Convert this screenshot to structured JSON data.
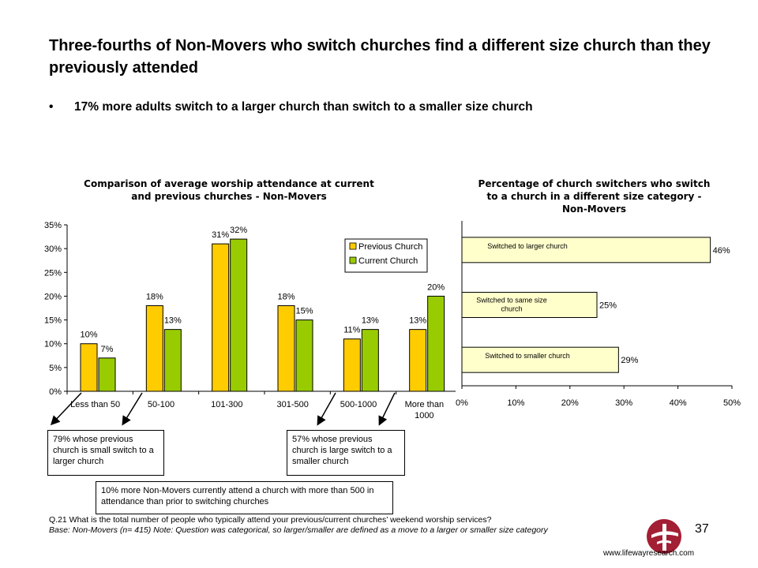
{
  "slide": {
    "title": "Three-fourths of Non-Movers who switch churches find a different size church than they previously attended",
    "bullet": "17% more adults switch to a larger church than switch to a smaller size church",
    "page_number": "37",
    "website": "www.lifewayresearch.com"
  },
  "callouts": {
    "small_to_larger": "79% whose previous church is small switch to a larger church",
    "large_to_smaller": "57% whose previous church is large switch to a smaller church",
    "over_500": "10% more Non-Movers currently attend a church with more than 500 in attendance than prior to switching churches"
  },
  "footnote": {
    "question": "Q.21  What is the total number of people who typically attend your previous/current churches’ weekend worship services?",
    "base": "Base: Non-Movers  (n= 415)  Note: Question was categorical, so larger/smaller are defined as a move to a larger or smaller size category"
  },
  "chart_data": [
    {
      "type": "bar",
      "title": "Comparison of average worship attendance at current and previous churches - Non-Movers",
      "categories": [
        "Less than 50",
        "50-100",
        "101-300",
        "301-500",
        "500-1000",
        "More than 1000"
      ],
      "series": [
        {
          "name": "Previous Church",
          "values": [
            10,
            18,
            31,
            18,
            11,
            13
          ],
          "labels": [
            "10%",
            "18%",
            "31%",
            "18%",
            "11%",
            "13%"
          ],
          "color": "#FFCC00"
        },
        {
          "name": "Current Church",
          "values": [
            7,
            13,
            32,
            15,
            13,
            20
          ],
          "labels": [
            "7%",
            "13%",
            "32%",
            "15%",
            "13%",
            "20%"
          ],
          "color": "#99CC00"
        }
      ],
      "yticks": [
        "0%",
        "5%",
        "10%",
        "15%",
        "20%",
        "25%",
        "30%",
        "35%"
      ],
      "ylim": [
        0,
        35
      ],
      "legend": "top-right",
      "grid": false
    },
    {
      "type": "bar",
      "orientation": "horizontal",
      "title": "Percentage of church switchers who switch to a church in a different size category - Non-Movers",
      "categories": [
        "Switched to larger church",
        "Switched to same size church",
        "Switched to smaller church"
      ],
      "values": [
        46,
        25,
        29
      ],
      "labels": [
        "46%",
        "25%",
        "29%"
      ],
      "color": "#FFFFCC",
      "xticks": [
        "0%",
        "10%",
        "20%",
        "30%",
        "40%",
        "50%"
      ],
      "xlim": [
        0,
        50
      ],
      "grid": false
    }
  ],
  "colors": {
    "previous": "#FFCC00",
    "current": "#99CC00",
    "hbar": "#FFFFCC"
  },
  "icons": {
    "logo": "lifeway-cross-logo"
  }
}
